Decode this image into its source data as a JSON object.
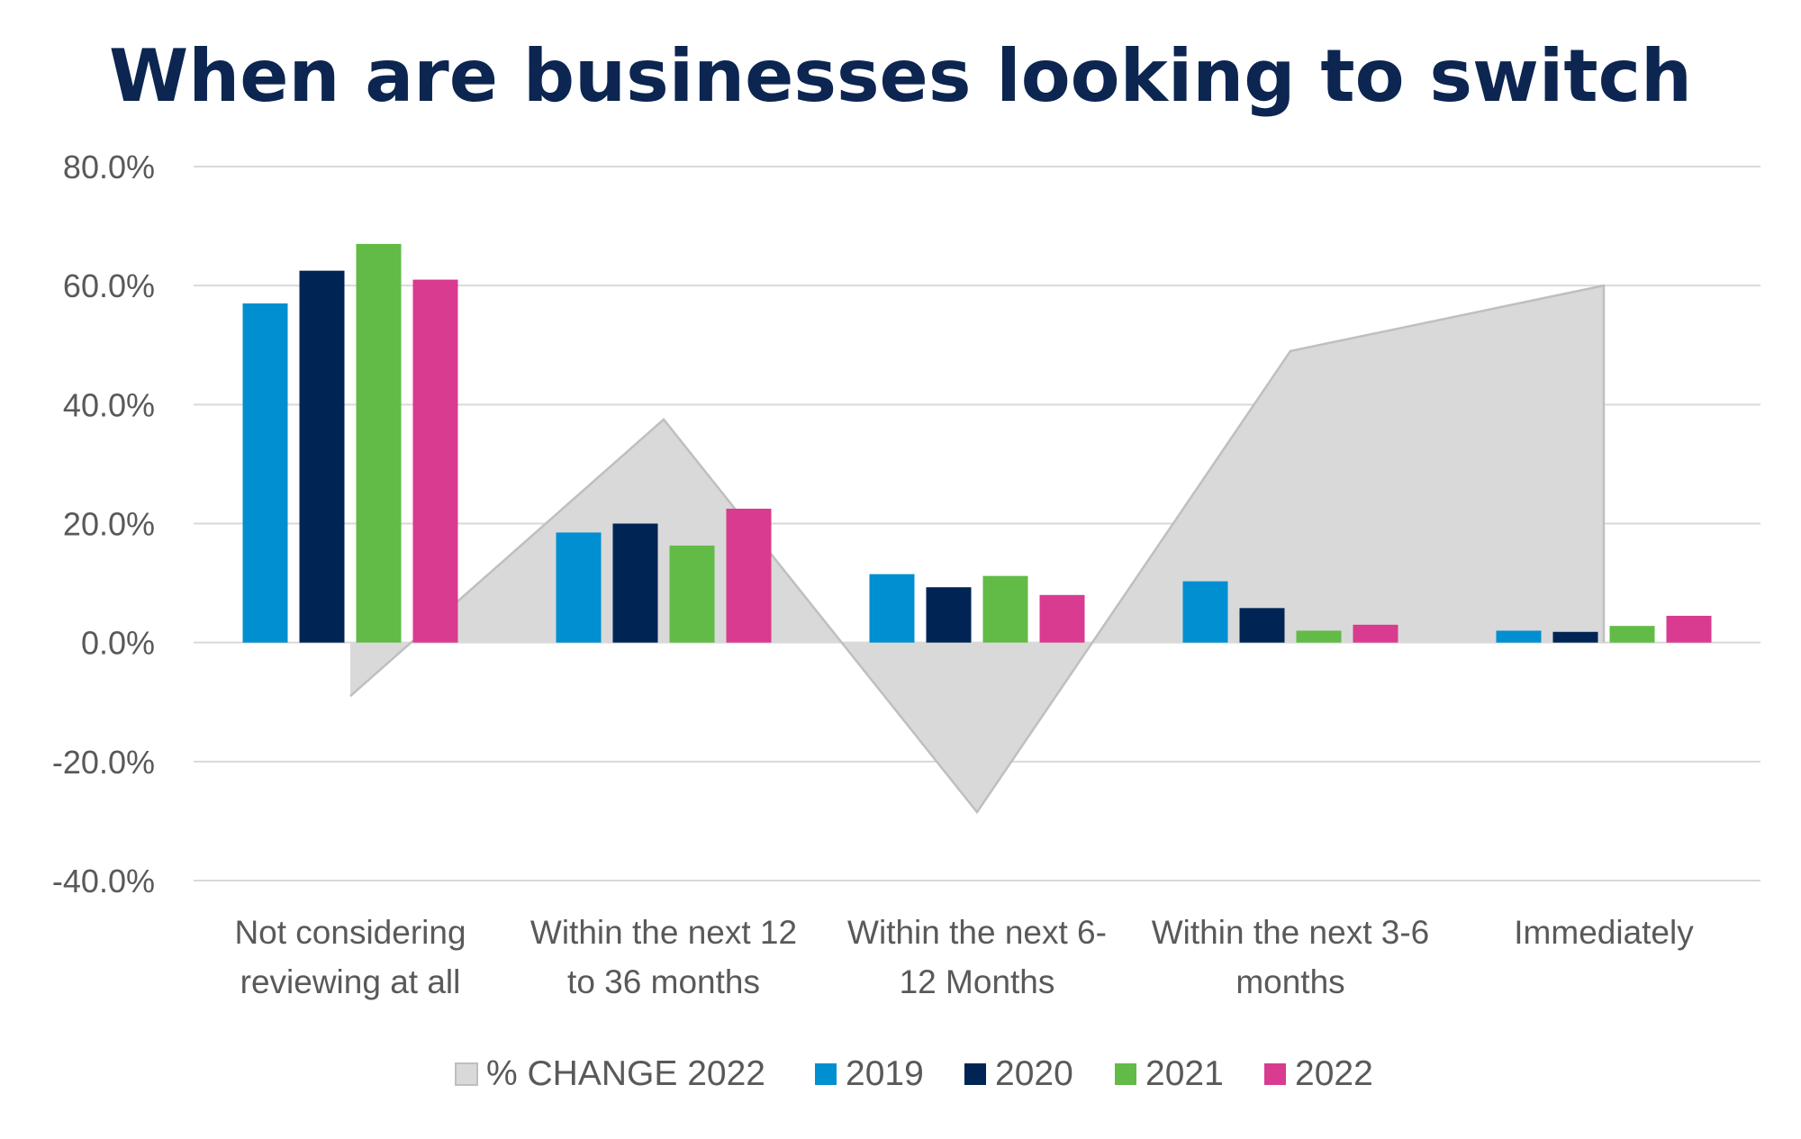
{
  "title": "When are businesses looking to switch",
  "colors": {
    "area": "#d9d9d9",
    "area_stroke": "#bfbfbf",
    "2019": "#008fd0",
    "2020": "#002554",
    "2021": "#62bb46",
    "2022": "#d83b8f",
    "grid": "#d9d9d9",
    "title": "#0c2551"
  },
  "chart_data": {
    "type": "bar",
    "title": "When are businesses looking to switch",
    "categories": [
      [
        "Not considering",
        "reviewing at all"
      ],
      [
        "Within the next 12",
        "to 36 months"
      ],
      [
        "Within the next 6-",
        "12 Months"
      ],
      [
        "Within the next 3-6",
        "months"
      ],
      [
        "Immediately"
      ]
    ],
    "ylim": [
      -40,
      80
    ],
    "yticks": [
      80,
      60,
      40,
      20,
      0,
      -20,
      -40
    ],
    "ytick_labels": [
      "80.0%",
      "60.0%",
      "40.0%",
      "20.0%",
      "0.0%",
      "-20.0%",
      "-40.0%"
    ],
    "grid": true,
    "legend_position": "bottom",
    "area_series": {
      "name": "% CHANGE 2022",
      "type": "area",
      "values": [
        -9,
        37.5,
        -28.5,
        49,
        60
      ]
    },
    "series": [
      {
        "name": "2019",
        "values": [
          57,
          18.5,
          11.5,
          10.3,
          2
        ]
      },
      {
        "name": "2020",
        "values": [
          62.5,
          20,
          9.3,
          5.8,
          1.8
        ]
      },
      {
        "name": "2021",
        "values": [
          67,
          16.3,
          11.2,
          2,
          2.8
        ]
      },
      {
        "name": "2022",
        "values": [
          61,
          22.5,
          8,
          3,
          4.5
        ]
      }
    ]
  }
}
